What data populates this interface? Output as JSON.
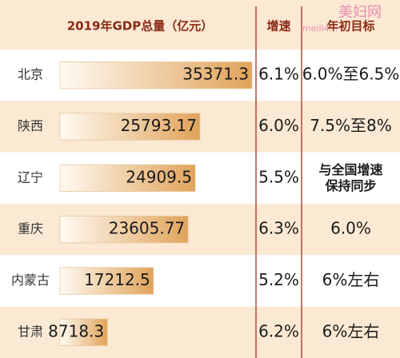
{
  "chart_data": {
    "type": "table",
    "title": "",
    "columns": [
      "2019年GDP总量（亿元）",
      "增速",
      "年初目标"
    ],
    "rows": [
      {
        "region": "北京",
        "gdp": 35371.3,
        "gdp_label": "35371.3",
        "growth": "6.1%",
        "target": "6.0%至6.5%"
      },
      {
        "region": "陕西",
        "gdp": 25793.17,
        "gdp_label": "25793.17",
        "growth": "6.0%",
        "target": "7.5%至8%"
      },
      {
        "region": "辽宁",
        "gdp": 24909.5,
        "gdp_label": "24909.5",
        "growth": "5.5%",
        "target": "与全国增速\n保持同步"
      },
      {
        "region": "重庆",
        "gdp": 23605.77,
        "gdp_label": "23605.77",
        "growth": "6.3%",
        "target": "6.0%"
      },
      {
        "region": "内蒙古",
        "gdp": 17212.5,
        "gdp_label": "17212.5",
        "growth": "5.2%",
        "target": "6%左右"
      },
      {
        "region": "甘肃",
        "gdp": 8718.3,
        "gdp_label": "8718.3",
        "growth": "6.2%",
        "target": "6%左右"
      }
    ],
    "gdp_max": 35371.3,
    "bar_color_light": "#fffaf2",
    "bar_color_dark": "#e0a35a",
    "band_color": "#fbe9d4",
    "divider_color": "#b24b39"
  },
  "watermark": {
    "text": "美妇网",
    "sub": "meili4..."
  }
}
